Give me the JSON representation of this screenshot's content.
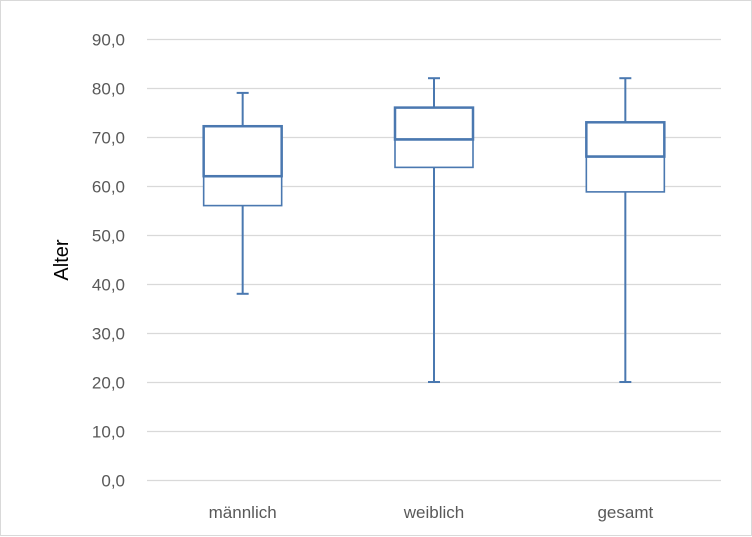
{
  "chart_data": {
    "type": "boxplot",
    "title": "",
    "xlabel": "",
    "ylabel": "Alter",
    "ylim": [
      0,
      90
    ],
    "yticks": [
      "0,0",
      "10,0",
      "20,0",
      "30,0",
      "40,0",
      "50,0",
      "60,0",
      "70,0",
      "80,0",
      "90,0"
    ],
    "ytick_values": [
      0,
      10,
      20,
      30,
      40,
      50,
      60,
      70,
      80,
      90
    ],
    "grid": true,
    "legend": "none",
    "categories": [
      "männlich",
      "weiblich",
      "gesamt"
    ],
    "boxes": [
      {
        "category": "männlich",
        "min": 38,
        "q1": 56,
        "median": 62,
        "q3": 72.2,
        "max": 79
      },
      {
        "category": "weiblich",
        "min": 20,
        "q1": 63.8,
        "median": 69.5,
        "q3": 76,
        "max": 82
      },
      {
        "category": "gesamt",
        "min": 20,
        "q1": 58.8,
        "median": 66,
        "q3": 73,
        "max": 82
      }
    ],
    "colors": {
      "box": "#4a78b0",
      "grid": "#d9d9d9",
      "tick_text": "#595959",
      "axis_title": "#000000"
    }
  }
}
